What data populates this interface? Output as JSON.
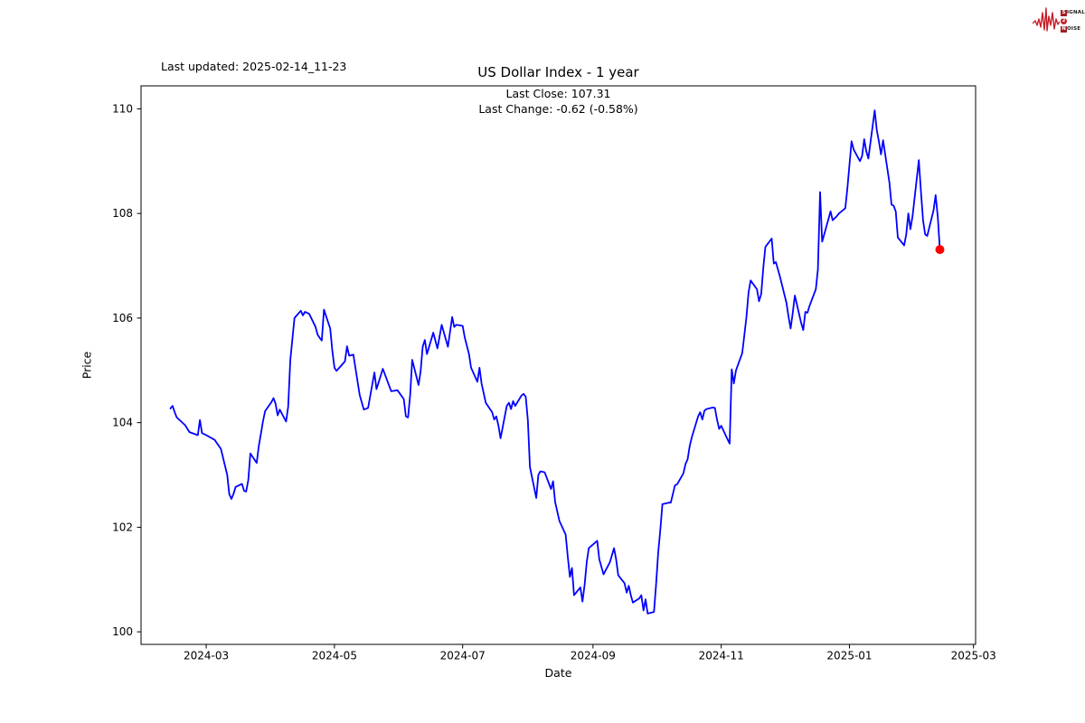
{
  "header": {
    "last_updated": "Last updated: 2025-02-14_11-23",
    "title": "US Dollar Index - 1 year",
    "subtitle_line1": "Last Close: 107.31",
    "subtitle_line2": "Last Change: -0.62 (-0.58%)"
  },
  "logo": {
    "line1_initial": "S",
    "line1_rest": "IGNAL",
    "badge": "2",
    "line2_initial": "N",
    "line2_rest": "OISE",
    "wave_color": "#c41e28"
  },
  "chart_data": {
    "type": "line",
    "title": "US Dollar Index - 1 year",
    "xlabel": "Date",
    "ylabel": "Price",
    "legend": null,
    "grid": false,
    "line_color": "#0000ff",
    "line_width": 1.8,
    "last_point_color": "#ff0000",
    "last_close": 107.31,
    "last_change": "-0.62 (-0.58%)",
    "x_tick_labels": [
      "2024-03",
      "2024-05",
      "2024-07",
      "2024-09",
      "2024-11",
      "2025-01",
      "2025-03"
    ],
    "y_ticks": [
      100,
      102,
      104,
      106,
      108,
      110
    ],
    "xlim": [
      "2024-01-30",
      "2025-03-02"
    ],
    "ylim": [
      99.76,
      110.44
    ],
    "series": [
      {
        "name": "US Dollar Index",
        "points": [
          [
            "2024-02-13",
            104.27
          ],
          [
            "2024-02-14",
            104.32
          ],
          [
            "2024-02-15",
            104.2
          ],
          [
            "2024-02-16",
            104.1
          ],
          [
            "2024-02-20",
            103.95
          ],
          [
            "2024-02-22",
            103.82
          ],
          [
            "2024-02-26",
            103.76
          ],
          [
            "2024-02-27",
            104.05
          ],
          [
            "2024-02-28",
            103.8
          ],
          [
            "2024-03-01",
            103.76
          ],
          [
            "2024-03-05",
            103.67
          ],
          [
            "2024-03-08",
            103.5
          ],
          [
            "2024-03-11",
            103.0
          ],
          [
            "2024-03-12",
            102.63
          ],
          [
            "2024-03-13",
            102.54
          ],
          [
            "2024-03-14",
            102.64
          ],
          [
            "2024-03-15",
            102.77
          ],
          [
            "2024-03-18",
            102.83
          ],
          [
            "2024-03-19",
            102.7
          ],
          [
            "2024-03-20",
            102.68
          ],
          [
            "2024-03-21",
            102.9
          ],
          [
            "2024-03-22",
            103.41
          ],
          [
            "2024-03-25",
            103.23
          ],
          [
            "2024-03-26",
            103.55
          ],
          [
            "2024-03-27",
            103.78
          ],
          [
            "2024-03-28",
            104.02
          ],
          [
            "2024-03-29",
            104.22
          ],
          [
            "2024-04-01",
            104.39
          ],
          [
            "2024-04-02",
            104.47
          ],
          [
            "2024-04-03",
            104.36
          ],
          [
            "2024-04-04",
            104.14
          ],
          [
            "2024-04-05",
            104.25
          ],
          [
            "2024-04-08",
            104.02
          ],
          [
            "2024-04-09",
            104.3
          ],
          [
            "2024-04-10",
            105.2
          ],
          [
            "2024-04-12",
            106.0
          ],
          [
            "2024-04-15",
            106.14
          ],
          [
            "2024-04-16",
            106.05
          ],
          [
            "2024-04-17",
            106.12
          ],
          [
            "2024-04-19",
            106.08
          ],
          [
            "2024-04-22",
            105.83
          ],
          [
            "2024-04-23",
            105.68
          ],
          [
            "2024-04-24",
            105.62
          ],
          [
            "2024-04-25",
            105.57
          ],
          [
            "2024-04-26",
            106.16
          ],
          [
            "2024-04-29",
            105.8
          ],
          [
            "2024-04-30",
            105.37
          ],
          [
            "2024-05-01",
            105.05
          ],
          [
            "2024-05-02",
            104.99
          ],
          [
            "2024-05-06",
            105.17
          ],
          [
            "2024-05-07",
            105.46
          ],
          [
            "2024-05-08",
            105.28
          ],
          [
            "2024-05-10",
            105.3
          ],
          [
            "2024-05-13",
            104.53
          ],
          [
            "2024-05-15",
            104.25
          ],
          [
            "2024-05-17",
            104.28
          ],
          [
            "2024-05-20",
            104.96
          ],
          [
            "2024-05-21",
            104.64
          ],
          [
            "2024-05-24",
            105.03
          ],
          [
            "2024-05-28",
            104.6
          ],
          [
            "2024-05-31",
            104.62
          ],
          [
            "2024-06-03",
            104.45
          ],
          [
            "2024-06-04",
            104.12
          ],
          [
            "2024-06-05",
            104.1
          ],
          [
            "2024-06-06",
            104.52
          ],
          [
            "2024-06-07",
            105.2
          ],
          [
            "2024-06-10",
            104.72
          ],
          [
            "2024-06-11",
            104.98
          ],
          [
            "2024-06-12",
            105.45
          ],
          [
            "2024-06-13",
            105.58
          ],
          [
            "2024-06-14",
            105.31
          ],
          [
            "2024-06-17",
            105.72
          ],
          [
            "2024-06-19",
            105.42
          ],
          [
            "2024-06-21",
            105.87
          ],
          [
            "2024-06-24",
            105.45
          ],
          [
            "2024-06-26",
            106.02
          ],
          [
            "2024-06-27",
            105.83
          ],
          [
            "2024-06-28",
            105.87
          ],
          [
            "2024-07-01",
            105.85
          ],
          [
            "2024-07-02",
            105.63
          ],
          [
            "2024-07-04",
            105.31
          ],
          [
            "2024-07-05",
            105.05
          ],
          [
            "2024-07-08",
            104.78
          ],
          [
            "2024-07-09",
            105.05
          ],
          [
            "2024-07-10",
            104.75
          ],
          [
            "2024-07-12",
            104.38
          ],
          [
            "2024-07-15",
            104.2
          ],
          [
            "2024-07-16",
            104.06
          ],
          [
            "2024-07-17",
            104.12
          ],
          [
            "2024-07-18",
            103.95
          ],
          [
            "2024-07-19",
            103.7
          ],
          [
            "2024-07-22",
            104.32
          ],
          [
            "2024-07-23",
            104.38
          ],
          [
            "2024-07-24",
            104.26
          ],
          [
            "2024-07-25",
            104.41
          ],
          [
            "2024-07-26",
            104.32
          ],
          [
            "2024-07-29",
            104.52
          ],
          [
            "2024-07-30",
            104.55
          ],
          [
            "2024-07-31",
            104.49
          ],
          [
            "2024-08-01",
            104.05
          ],
          [
            "2024-08-02",
            103.15
          ],
          [
            "2024-08-05",
            102.56
          ],
          [
            "2024-08-06",
            103.0
          ],
          [
            "2024-08-07",
            103.07
          ],
          [
            "2024-08-09",
            103.05
          ],
          [
            "2024-08-12",
            102.73
          ],
          [
            "2024-08-13",
            102.88
          ],
          [
            "2024-08-14",
            102.48
          ],
          [
            "2024-08-16",
            102.12
          ],
          [
            "2024-08-19",
            101.86
          ],
          [
            "2024-08-20",
            101.43
          ],
          [
            "2024-08-21",
            101.05
          ],
          [
            "2024-08-22",
            101.22
          ],
          [
            "2024-08-23",
            100.7
          ],
          [
            "2024-08-26",
            100.85
          ],
          [
            "2024-08-27",
            100.58
          ],
          [
            "2024-08-28",
            100.9
          ],
          [
            "2024-08-29",
            101.33
          ],
          [
            "2024-08-30",
            101.6
          ],
          [
            "2024-09-03",
            101.74
          ],
          [
            "2024-09-04",
            101.39
          ],
          [
            "2024-09-06",
            101.1
          ],
          [
            "2024-09-09",
            101.33
          ],
          [
            "2024-09-11",
            101.6
          ],
          [
            "2024-09-12",
            101.39
          ],
          [
            "2024-09-13",
            101.08
          ],
          [
            "2024-09-16",
            100.93
          ],
          [
            "2024-09-17",
            100.75
          ],
          [
            "2024-09-18",
            100.88
          ],
          [
            "2024-09-19",
            100.7
          ],
          [
            "2024-09-20",
            100.56
          ],
          [
            "2024-09-23",
            100.64
          ],
          [
            "2024-09-24",
            100.7
          ],
          [
            "2024-09-25",
            100.41
          ],
          [
            "2024-09-26",
            100.62
          ],
          [
            "2024-09-27",
            100.35
          ],
          [
            "2024-09-30",
            100.38
          ],
          [
            "2024-10-01",
            100.9
          ],
          [
            "2024-10-02",
            101.5
          ],
          [
            "2024-10-03",
            101.95
          ],
          [
            "2024-10-04",
            102.44
          ],
          [
            "2024-10-07",
            102.47
          ],
          [
            "2024-10-08",
            102.47
          ],
          [
            "2024-10-10",
            102.8
          ],
          [
            "2024-10-11",
            102.82
          ],
          [
            "2024-10-14",
            103.03
          ],
          [
            "2024-10-15",
            103.21
          ],
          [
            "2024-10-16",
            103.3
          ],
          [
            "2024-10-17",
            103.55
          ],
          [
            "2024-10-18",
            103.72
          ],
          [
            "2024-10-21",
            104.12
          ],
          [
            "2024-10-22",
            104.2
          ],
          [
            "2024-10-23",
            104.06
          ],
          [
            "2024-10-24",
            104.23
          ],
          [
            "2024-10-25",
            104.26
          ],
          [
            "2024-10-28",
            104.29
          ],
          [
            "2024-10-29",
            104.28
          ],
          [
            "2024-10-30",
            104.06
          ],
          [
            "2024-10-31",
            103.88
          ],
          [
            "2024-11-01",
            103.94
          ],
          [
            "2024-11-04",
            103.68
          ],
          [
            "2024-11-05",
            103.6
          ],
          [
            "2024-11-06",
            105.02
          ],
          [
            "2024-11-07",
            104.75
          ],
          [
            "2024-11-08",
            105.0
          ],
          [
            "2024-11-11",
            105.33
          ],
          [
            "2024-11-12",
            105.68
          ],
          [
            "2024-11-13",
            106.03
          ],
          [
            "2024-11-14",
            106.49
          ],
          [
            "2024-11-15",
            106.72
          ],
          [
            "2024-11-18",
            106.55
          ],
          [
            "2024-11-19",
            106.32
          ],
          [
            "2024-11-20",
            106.46
          ],
          [
            "2024-11-21",
            106.96
          ],
          [
            "2024-11-22",
            107.36
          ],
          [
            "2024-11-25",
            107.52
          ],
          [
            "2024-11-26",
            107.04
          ],
          [
            "2024-11-27",
            107.07
          ],
          [
            "2024-11-29",
            106.78
          ],
          [
            "2024-12-02",
            106.29
          ],
          [
            "2024-12-03",
            106.03
          ],
          [
            "2024-12-04",
            105.8
          ],
          [
            "2024-12-05",
            106.09
          ],
          [
            "2024-12-06",
            106.43
          ],
          [
            "2024-12-09",
            105.91
          ],
          [
            "2024-12-10",
            105.77
          ],
          [
            "2024-12-11",
            106.12
          ],
          [
            "2024-12-12",
            106.1
          ],
          [
            "2024-12-13",
            106.23
          ],
          [
            "2024-12-16",
            106.55
          ],
          [
            "2024-12-17",
            106.93
          ],
          [
            "2024-12-18",
            108.41
          ],
          [
            "2024-12-19",
            107.46
          ],
          [
            "2024-12-20",
            107.6
          ],
          [
            "2024-12-23",
            108.04
          ],
          [
            "2024-12-24",
            107.87
          ],
          [
            "2024-12-26",
            107.95
          ],
          [
            "2024-12-27",
            108.0
          ],
          [
            "2024-12-30",
            108.1
          ],
          [
            "2024-12-31",
            108.48
          ],
          [
            "2025-01-02",
            109.38
          ],
          [
            "2025-01-03",
            109.22
          ],
          [
            "2025-01-06",
            109.0
          ],
          [
            "2025-01-07",
            109.1
          ],
          [
            "2025-01-08",
            109.42
          ],
          [
            "2025-01-09",
            109.19
          ],
          [
            "2025-01-10",
            109.05
          ],
          [
            "2025-01-13",
            109.97
          ],
          [
            "2025-01-14",
            109.6
          ],
          [
            "2025-01-15",
            109.37
          ],
          [
            "2025-01-16",
            109.13
          ],
          [
            "2025-01-17",
            109.4
          ],
          [
            "2025-01-20",
            108.59
          ],
          [
            "2025-01-21",
            108.17
          ],
          [
            "2025-01-22",
            108.15
          ],
          [
            "2025-01-23",
            108.04
          ],
          [
            "2025-01-24",
            107.54
          ],
          [
            "2025-01-27",
            107.39
          ],
          [
            "2025-01-28",
            107.6
          ],
          [
            "2025-01-29",
            108.0
          ],
          [
            "2025-01-30",
            107.7
          ],
          [
            "2025-01-31",
            107.95
          ],
          [
            "2025-02-03",
            109.02
          ],
          [
            "2025-02-04",
            108.41
          ],
          [
            "2025-02-05",
            107.87
          ],
          [
            "2025-02-06",
            107.6
          ],
          [
            "2025-02-07",
            107.57
          ],
          [
            "2025-02-10",
            108.06
          ],
          [
            "2025-02-11",
            108.35
          ],
          [
            "2025-02-12",
            107.93
          ],
          [
            "2025-02-13",
            107.31
          ]
        ]
      }
    ]
  }
}
